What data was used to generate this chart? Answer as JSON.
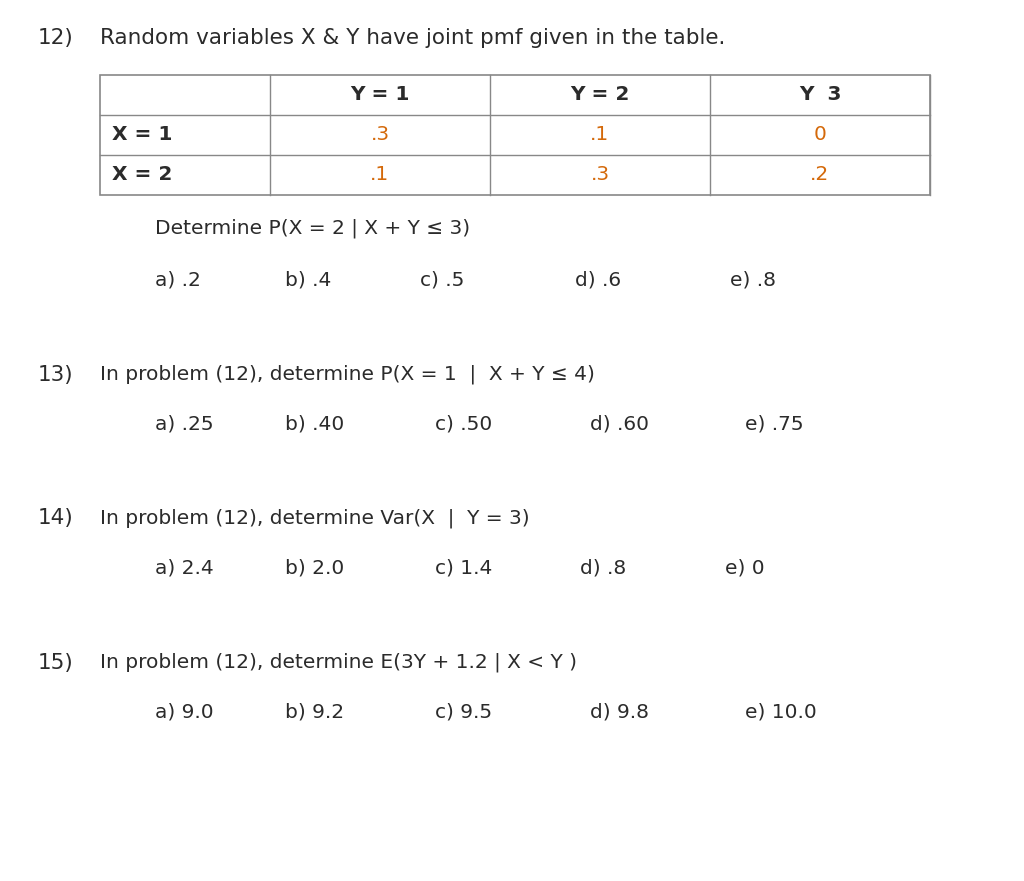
{
  "background_color": "#ffffff",
  "problem_number": "12)",
  "problem_title": "Random variables X & Y have joint pmf given in the table.",
  "table": {
    "col_headers": [
      "",
      "Y = 1",
      "Y = 2",
      "Y  3"
    ],
    "rows": [
      {
        "label": "X = 1",
        "values": [
          ".3",
          ".1",
          "0"
        ]
      },
      {
        "label": "X = 2",
        "values": [
          ".1",
          ".3",
          ".2"
        ]
      }
    ]
  },
  "questions": [
    {
      "stem": "Determine P(X = 2 | X + Y ≤ 3)",
      "options": [
        "a) .2",
        "b) .4",
        "c) .5",
        "d) .6",
        "e) .8"
      ]
    },
    {
      "number": "13)",
      "stem": "In problem (12), determine P(X = 1  |  X + Y ≤ 4)",
      "options": [
        "a) .25",
        "b) .40",
        "c) .50",
        "d) .60",
        "e) .75"
      ]
    },
    {
      "number": "14)",
      "stem": "In problem (12), determine Var(X  |  Y = 3)",
      "options": [
        "a) 2.4",
        "b) 2.0",
        "c) 1.4",
        "d) .8",
        "e) 0"
      ]
    },
    {
      "number": "15)",
      "stem": "In problem (12), determine E(3Y + 1.2 | X < Y )",
      "options": [
        "a) 9.0",
        "b) 9.2",
        "c) 9.5",
        "d) 9.8",
        "e) 10.0"
      ]
    }
  ],
  "font_size_title": 15.5,
  "font_size_body": 14.5,
  "text_color": "#2b2b2b",
  "orange_color": "#d4690a",
  "table_line_color": "#888888"
}
